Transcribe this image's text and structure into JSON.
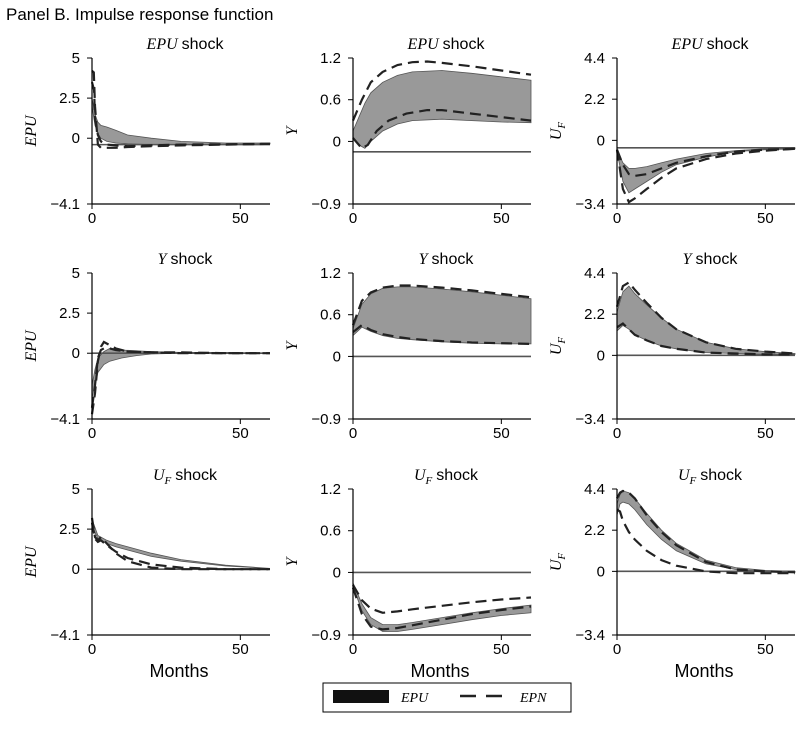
{
  "panel_title": "Panel B. Impulse response function",
  "legend": {
    "items": [
      {
        "label": "EPU",
        "style": "band"
      },
      {
        "label": "EPN",
        "style": "dashed"
      }
    ]
  },
  "colors": {
    "band": "#999999",
    "dashed": "#222222",
    "zero_line": "#555555",
    "legend_band": "#111111"
  },
  "chart_data": [
    {
      "type": "line",
      "row": 0,
      "col": 0,
      "title_var": "EPU",
      "title_sub": "",
      "title_suffix": "shock",
      "ylabel_var": "EPU",
      "ylabel_sub": "",
      "xlabel": "",
      "ylim": [
        -4.1,
        5
      ],
      "yticks": [
        -4.1,
        0,
        2.5,
        5
      ],
      "ytick_labels": [
        "−4.1",
        "0",
        "2.5",
        "5"
      ],
      "xlim": [
        0,
        60
      ],
      "xticks": [
        0,
        50
      ],
      "xtick_labels": [
        "0",
        "50"
      ],
      "zero_y": -0.4,
      "band": {
        "x": [
          0,
          1,
          2,
          3,
          5,
          8,
          12,
          20,
          30,
          45,
          60
        ],
        "lower": [
          2.0,
          0.8,
          0.3,
          0.0,
          -0.2,
          -0.3,
          -0.35,
          -0.4,
          -0.4,
          -0.4,
          -0.35
        ],
        "upper": [
          2.5,
          1.5,
          1.0,
          0.8,
          0.7,
          0.5,
          0.2,
          0,
          -0.2,
          -0.3,
          -0.3
        ]
      },
      "dashed": [
        {
          "x": [
            0,
            0.6,
            1,
            2,
            3,
            5,
            8,
            12,
            20,
            30,
            45,
            60
          ],
          "y": [
            4.2,
            4.1,
            2.0,
            -0.4,
            -0.6,
            -0.6,
            -0.6,
            -0.55,
            -0.5,
            -0.45,
            -0.4,
            -0.35
          ]
        },
        {
          "x": [
            0,
            0.7,
            1,
            2,
            3,
            5,
            8,
            12,
            20,
            30,
            45,
            60
          ],
          "y": [
            3.5,
            3.0,
            1.2,
            0.2,
            -0.2,
            -0.4,
            -0.45,
            -0.5,
            -0.45,
            -0.4,
            -0.38,
            -0.35
          ]
        }
      ]
    },
    {
      "type": "line",
      "row": 0,
      "col": 1,
      "title_var": "EPU",
      "title_sub": "",
      "title_suffix": "shock",
      "ylabel_var": "Y",
      "ylabel_sub": "",
      "xlabel": "",
      "ylim": [
        -0.9,
        1.2
      ],
      "yticks": [
        -0.9,
        0,
        0.6,
        1.2
      ],
      "ytick_labels": [
        "−0.9",
        "0",
        "0.6",
        "1.2"
      ],
      "xlim": [
        0,
        60
      ],
      "xticks": [
        0,
        50
      ],
      "xtick_labels": [
        "0",
        "50"
      ],
      "zero_y": -0.15,
      "band": {
        "x": [
          0,
          2,
          4,
          6,
          10,
          15,
          20,
          30,
          40,
          50,
          60
        ],
        "lower": [
          0.05,
          -0.05,
          -0.1,
          0.0,
          0.15,
          0.25,
          0.3,
          0.32,
          0.3,
          0.28,
          0.27
        ],
        "upper": [
          0.15,
          0.35,
          0.55,
          0.7,
          0.85,
          0.95,
          1.0,
          1.02,
          0.98,
          0.93,
          0.88
        ]
      },
      "dashed": [
        {
          "x": [
            0,
            3,
            6,
            10,
            15,
            20,
            25,
            30,
            40,
            50,
            60
          ],
          "y": [
            0.3,
            0.6,
            0.85,
            1.0,
            1.1,
            1.14,
            1.15,
            1.13,
            1.08,
            1.02,
            0.96
          ]
        },
        {
          "x": [
            0,
            3,
            5,
            8,
            12,
            18,
            25,
            30,
            40,
            50,
            60
          ],
          "y": [
            0.05,
            -0.1,
            -0.05,
            0.15,
            0.3,
            0.4,
            0.45,
            0.45,
            0.4,
            0.35,
            0.3
          ]
        }
      ]
    },
    {
      "type": "line",
      "row": 0,
      "col": 2,
      "title_var": "EPU",
      "title_sub": "",
      "title_suffix": "shock",
      "ylabel_var": "U",
      "ylabel_sub": "F",
      "xlabel": "",
      "ylim": [
        -3.4,
        4.4
      ],
      "yticks": [
        -3.4,
        0,
        2.2,
        4.4
      ],
      "ytick_labels": [
        "−3.4",
        "0",
        "2.2",
        "4.4"
      ],
      "xlim": [
        0,
        60
      ],
      "xticks": [
        0,
        50
      ],
      "xtick_labels": [
        "0",
        "50"
      ],
      "zero_y": -0.4,
      "band": {
        "x": [
          0,
          2,
          4,
          6,
          10,
          15,
          20,
          30,
          40,
          50,
          60
        ],
        "lower": [
          -0.6,
          -2.2,
          -2.8,
          -2.6,
          -2.2,
          -1.7,
          -1.3,
          -0.9,
          -0.6,
          -0.5,
          -0.45
        ],
        "upper": [
          -0.5,
          -1.2,
          -1.5,
          -1.5,
          -1.4,
          -1.2,
          -1.0,
          -0.7,
          -0.55,
          -0.45,
          -0.4
        ]
      },
      "dashed": [
        {
          "x": [
            0,
            2,
            4,
            6,
            10,
            15,
            20,
            30,
            40,
            50,
            60
          ],
          "y": [
            -0.5,
            -2.6,
            -3.3,
            -3.1,
            -2.6,
            -2.0,
            -1.5,
            -1.0,
            -0.7,
            -0.55,
            -0.45
          ]
        },
        {
          "x": [
            0,
            2,
            4,
            6,
            10,
            15,
            20,
            30,
            40,
            50,
            60
          ],
          "y": [
            -0.5,
            -1.3,
            -1.8,
            -1.9,
            -1.8,
            -1.5,
            -1.2,
            -0.85,
            -0.6,
            -0.5,
            -0.45
          ]
        }
      ]
    },
    {
      "type": "line",
      "row": 1,
      "col": 0,
      "title_var": "Y",
      "title_sub": "",
      "title_suffix": "shock",
      "ylabel_var": "EPU",
      "ylabel_sub": "",
      "xlabel": "",
      "ylim": [
        -4.1,
        5
      ],
      "yticks": [
        -4.1,
        0,
        2.5,
        5
      ],
      "ytick_labels": [
        "−4.1",
        "0",
        "2.5",
        "5"
      ],
      "xlim": [
        0,
        60
      ],
      "xticks": [
        0,
        50
      ],
      "xtick_labels": [
        "0",
        "50"
      ],
      "zero_y": 0,
      "band": {
        "x": [
          0,
          1,
          2,
          4,
          6,
          10,
          15,
          20,
          30,
          45,
          60
        ],
        "lower": [
          -2.8,
          -2.0,
          -1.2,
          -0.7,
          -0.5,
          -0.3,
          -0.15,
          -0.05,
          0,
          0,
          0
        ],
        "upper": [
          -2.0,
          -1.0,
          -0.3,
          0.1,
          0.3,
          0.2,
          0.15,
          0.1,
          0.05,
          0.05,
          0
        ]
      },
      "dashed": [
        {
          "x": [
            0,
            1,
            2,
            3,
            4,
            6,
            8,
            12,
            20,
            30,
            45,
            60
          ],
          "y": [
            -3.8,
            -2.5,
            -0.5,
            0.4,
            0.7,
            0.5,
            0.3,
            0.1,
            0.05,
            0.05,
            0,
            0
          ]
        },
        {
          "x": [
            0,
            1,
            2,
            3,
            4,
            6,
            8,
            12,
            20,
            30,
            45,
            60
          ],
          "y": [
            -3.4,
            -2.0,
            -0.3,
            0.2,
            0.3,
            0.3,
            0.2,
            0.1,
            0.05,
            0,
            0,
            0
          ]
        }
      ]
    },
    {
      "type": "line",
      "row": 1,
      "col": 1,
      "title_var": "Y",
      "title_sub": "",
      "title_suffix": "shock",
      "ylabel_var": "Y",
      "ylabel_sub": "",
      "xlabel": "",
      "ylim": [
        -0.9,
        1.2
      ],
      "yticks": [
        -0.9,
        0,
        0.6,
        1.2
      ],
      "ytick_labels": [
        "−0.9",
        "0",
        "0.6",
        "1.2"
      ],
      "xlim": [
        0,
        60
      ],
      "xticks": [
        0,
        50
      ],
      "xtick_labels": [
        "0",
        "50"
      ],
      "zero_y": 0,
      "band": {
        "x": [
          0,
          3,
          6,
          10,
          15,
          20,
          30,
          40,
          50,
          60
        ],
        "lower": [
          0.3,
          0.42,
          0.36,
          0.3,
          0.26,
          0.24,
          0.21,
          0.19,
          0.18,
          0.18
        ],
        "upper": [
          0.4,
          0.75,
          0.9,
          0.98,
          1.0,
          1.0,
          0.97,
          0.93,
          0.88,
          0.83
        ]
      },
      "dashed": [
        {
          "x": [
            0,
            3,
            6,
            10,
            15,
            20,
            30,
            40,
            50,
            60
          ],
          "y": [
            0.45,
            0.8,
            0.92,
            0.99,
            1.02,
            1.02,
            0.99,
            0.95,
            0.9,
            0.85
          ]
        },
        {
          "x": [
            0,
            3,
            6,
            10,
            15,
            20,
            30,
            40,
            50,
            60
          ],
          "y": [
            0.35,
            0.45,
            0.38,
            0.32,
            0.28,
            0.25,
            0.22,
            0.2,
            0.19,
            0.18
          ]
        }
      ]
    },
    {
      "type": "line",
      "row": 1,
      "col": 2,
      "title_var": "Y",
      "title_sub": "",
      "title_suffix": "shock",
      "ylabel_var": "U",
      "ylabel_sub": "F",
      "xlabel": "",
      "ylim": [
        -3.4,
        4.4
      ],
      "yticks": [
        -3.4,
        0,
        2.2,
        4.4
      ],
      "ytick_labels": [
        "−3.4",
        "0",
        "2.2",
        "4.4"
      ],
      "xlim": [
        0,
        60
      ],
      "xticks": [
        0,
        50
      ],
      "xtick_labels": [
        "0",
        "50"
      ],
      "zero_y": 0,
      "band": {
        "x": [
          0,
          2,
          4,
          6,
          10,
          15,
          20,
          30,
          40,
          50,
          60
        ],
        "lower": [
          1.3,
          1.6,
          1.4,
          1.1,
          0.8,
          0.5,
          0.35,
          0.15,
          0.1,
          0.05,
          0.05
        ],
        "upper": [
          2.3,
          3.4,
          3.7,
          3.3,
          2.7,
          2.0,
          1.4,
          0.7,
          0.35,
          0.2,
          0.1
        ]
      },
      "dashed": [
        {
          "x": [
            0,
            2,
            4,
            6,
            10,
            15,
            20,
            30,
            40,
            50,
            60
          ],
          "y": [
            2.6,
            3.7,
            3.9,
            3.5,
            2.8,
            2.0,
            1.4,
            0.7,
            0.35,
            0.2,
            0.1
          ]
        },
        {
          "x": [
            0,
            2,
            4,
            6,
            10,
            15,
            20,
            30,
            40,
            50,
            60
          ],
          "y": [
            1.5,
            1.7,
            1.4,
            1.1,
            0.8,
            0.5,
            0.35,
            0.15,
            0.1,
            0.05,
            0.05
          ]
        }
      ]
    },
    {
      "type": "line",
      "row": 2,
      "col": 0,
      "title_var": "U",
      "title_sub": "F",
      "title_suffix": " shock",
      "ylabel_var": "EPU",
      "ylabel_sub": "",
      "xlabel": "Months",
      "ylim": [
        -4.1,
        5
      ],
      "yticks": [
        -4.1,
        0,
        2.5,
        5
      ],
      "ytick_labels": [
        "−4.1",
        "0",
        "2.5",
        "5"
      ],
      "xlim": [
        0,
        60
      ],
      "xticks": [
        0,
        50
      ],
      "xtick_labels": [
        "0",
        "50"
      ],
      "zero_y": 0,
      "band": {
        "x": [
          0,
          1,
          2,
          3,
          5,
          8,
          12,
          20,
          30,
          45,
          60
        ],
        "lower": [
          2.8,
          2.3,
          1.9,
          1.8,
          1.6,
          1.4,
          1.2,
          0.8,
          0.5,
          0.2,
          0.05
        ],
        "upper": [
          3.1,
          2.6,
          2.1,
          2.0,
          1.8,
          1.6,
          1.4,
          1.0,
          0.6,
          0.25,
          0.05
        ]
      },
      "dashed": [
        {
          "x": [
            0,
            1,
            2,
            3,
            5,
            8,
            12,
            20,
            30,
            45,
            60
          ],
          "y": [
            3.2,
            2.0,
            1.8,
            2.0,
            1.6,
            1.0,
            0.5,
            0.1,
            0,
            0,
            0
          ]
        },
        {
          "x": [
            0,
            1,
            2,
            3,
            5,
            8,
            12,
            20,
            30,
            45,
            60
          ],
          "y": [
            2.9,
            1.9,
            1.7,
            1.8,
            1.5,
            1.1,
            0.7,
            0.3,
            0.1,
            0,
            0
          ]
        }
      ]
    },
    {
      "type": "line",
      "row": 2,
      "col": 1,
      "title_var": "U",
      "title_sub": "F",
      "title_suffix": " shock",
      "ylabel_var": "Y",
      "ylabel_sub": "",
      "xlabel": "Months",
      "ylim": [
        -0.9,
        1.2
      ],
      "yticks": [
        -0.9,
        0,
        0.6,
        1.2
      ],
      "ytick_labels": [
        "−0.9",
        "0",
        "0.6",
        "1.2"
      ],
      "xlim": [
        0,
        60
      ],
      "xticks": [
        0,
        50
      ],
      "xtick_labels": [
        "0",
        "50"
      ],
      "zero_y": 0,
      "band": {
        "x": [
          0,
          3,
          6,
          10,
          15,
          20,
          30,
          40,
          50,
          60
        ],
        "lower": [
          -0.2,
          -0.55,
          -0.75,
          -0.85,
          -0.85,
          -0.82,
          -0.75,
          -0.68,
          -0.62,
          -0.58
        ],
        "upper": [
          -0.15,
          -0.45,
          -0.65,
          -0.75,
          -0.75,
          -0.72,
          -0.65,
          -0.58,
          -0.52,
          -0.47
        ]
      },
      "dashed": [
        {
          "x": [
            0,
            3,
            6,
            10,
            15,
            20,
            30,
            40,
            50,
            60
          ],
          "y": [
            -0.18,
            -0.4,
            -0.52,
            -0.58,
            -0.56,
            -0.53,
            -0.48,
            -0.43,
            -0.39,
            -0.36
          ]
        },
        {
          "x": [
            0,
            3,
            6,
            10,
            15,
            20,
            30,
            40,
            50,
            60
          ],
          "y": [
            -0.22,
            -0.6,
            -0.78,
            -0.82,
            -0.8,
            -0.76,
            -0.68,
            -0.6,
            -0.54,
            -0.49
          ]
        }
      ]
    },
    {
      "type": "line",
      "row": 2,
      "col": 2,
      "title_var": "U",
      "title_sub": "F",
      "title_suffix": " shock",
      "ylabel_var": "U",
      "ylabel_sub": "F",
      "xlabel": "Months",
      "ylim": [
        -3.4,
        4.4
      ],
      "yticks": [
        -3.4,
        0,
        2.2,
        4.4
      ],
      "ytick_labels": [
        "−3.4",
        "0",
        "2.2",
        "4.4"
      ],
      "xlim": [
        0,
        60
      ],
      "xticks": [
        0,
        50
      ],
      "xtick_labels": [
        "0",
        "50"
      ],
      "zero_y": 0,
      "band": {
        "x": [
          0,
          1,
          2,
          4,
          6,
          10,
          15,
          20,
          30,
          40,
          50,
          60
        ],
        "lower": [
          3.0,
          3.6,
          3.7,
          3.6,
          3.3,
          2.5,
          1.7,
          1.1,
          0.4,
          0.1,
          0,
          -0.05
        ],
        "upper": [
          3.6,
          4.1,
          4.3,
          4.2,
          3.9,
          3.1,
          2.2,
          1.5,
          0.6,
          0.2,
          0.05,
          0
        ]
      },
      "dashed": [
        {
          "x": [
            0,
            1,
            2,
            4,
            6,
            10,
            15,
            20,
            30,
            40,
            50,
            60
          ],
          "y": [
            3.9,
            4.2,
            4.3,
            4.2,
            3.9,
            3.0,
            2.1,
            1.4,
            0.5,
            0.1,
            0,
            -0.05
          ]
        },
        {
          "x": [
            0,
            1,
            2,
            4,
            6,
            10,
            15,
            20,
            30,
            40,
            50,
            60
          ],
          "y": [
            3.3,
            3.2,
            2.7,
            2.1,
            1.7,
            1.1,
            0.6,
            0.3,
            0,
            -0.1,
            -0.1,
            -0.1
          ]
        }
      ]
    }
  ]
}
